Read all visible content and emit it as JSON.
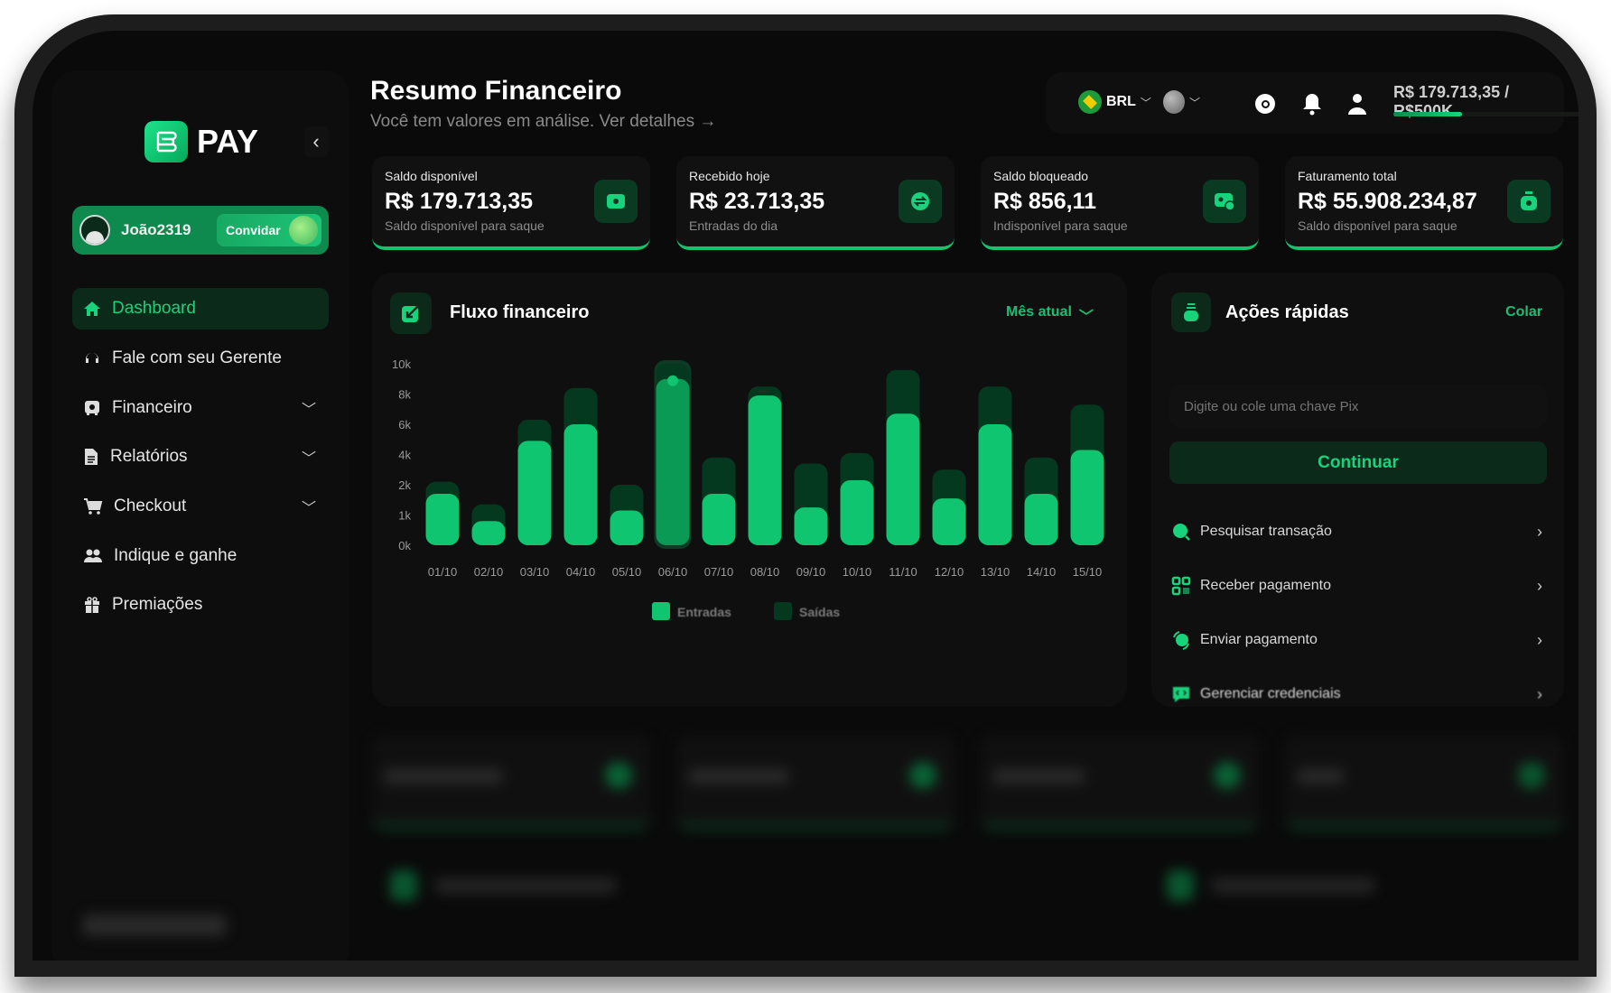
{
  "brand": {
    "name": "PAY"
  },
  "user": {
    "name": "João2319",
    "invite_label": "Convidar"
  },
  "sidebar": {
    "items": [
      {
        "label": "Dashboard",
        "icon": "home-icon",
        "active": true
      },
      {
        "label": "Fale com seu Gerente",
        "icon": "headset-icon"
      },
      {
        "label": "Financeiro",
        "icon": "safe-icon",
        "expandable": true
      },
      {
        "label": "Relatórios",
        "icon": "document-icon",
        "expandable": true
      },
      {
        "label": "Checkout",
        "icon": "cart-icon",
        "expandable": true
      },
      {
        "label": "Indique e ganhe",
        "icon": "users-icon"
      },
      {
        "label": "Premiações",
        "icon": "gift-icon"
      }
    ]
  },
  "header": {
    "title": "Resumo Financeiro",
    "subtitle": "Você tem valores em análise. Ver detalhes →",
    "currency": "BRL",
    "limit_text": "R$ 179.713,35 / R$500K",
    "limit_progress": 0.36
  },
  "cards": [
    {
      "label": "Saldo disponível",
      "value": "R$ 179.713,35",
      "sub": "Saldo disponível para saque",
      "icon": "wallet-icon"
    },
    {
      "label": "Recebido hoje",
      "value": "R$ 23.713,35",
      "sub": "Entradas do dia",
      "icon": "exchange-icon"
    },
    {
      "label": "Saldo bloqueado",
      "value": "R$ 856,11",
      "sub": "Indisponível para saque",
      "icon": "blocked-wallet-icon"
    },
    {
      "label": "Faturamento total",
      "value": "R$ 55.908.234,87",
      "sub": "Saldo disponível para saque",
      "icon": "money-bag-icon"
    }
  ],
  "flow": {
    "title": "Fluxo financeiro",
    "period": "Mês atual"
  },
  "chart_data": {
    "type": "bar",
    "title": "Fluxo financeiro",
    "categories": [
      "01/10",
      "02/10",
      "03/10",
      "04/10",
      "05/10",
      "06/10",
      "07/10",
      "08/10",
      "09/10",
      "10/10",
      "11/10",
      "12/10",
      "13/10",
      "14/10",
      "15/10"
    ],
    "yticks": [
      "0k",
      "1k",
      "2k",
      "4k",
      "6k",
      "8k",
      "10k"
    ],
    "ytick_values": [
      0,
      1000,
      2000,
      4000,
      6000,
      8000,
      10000
    ],
    "ylim": [
      0,
      10000
    ],
    "series": [
      {
        "name": "Entradas",
        "color": "#0fc56f",
        "values": [
          1700,
          800,
          4900,
          6000,
          1150,
          9000,
          1700,
          7900,
          1250,
          2300,
          6700,
          1550,
          6000,
          1700,
          4300
        ]
      },
      {
        "name": "Saídas",
        "color": "#05391f",
        "values": [
          2200,
          1350,
          6300,
          8400,
          2000,
          10000,
          3800,
          8500,
          3400,
          4100,
          9600,
          3000,
          8500,
          3800,
          7300
        ]
      }
    ],
    "highlight": "06/10",
    "legend": "bottom"
  },
  "quick": {
    "title": "Ações rápidas",
    "paste_label": "Colar",
    "input_placeholder": "Digite ou cole uma chave Pix",
    "continue_label": "Continuar",
    "items": [
      {
        "label": "Pesquisar transação",
        "icon": "search-icon"
      },
      {
        "label": "Receber pagamento",
        "icon": "qr-code-icon"
      },
      {
        "label": "Enviar pagamento",
        "icon": "send-icon"
      },
      {
        "label": "Gerenciar credenciais",
        "icon": "code-icon"
      }
    ]
  }
}
